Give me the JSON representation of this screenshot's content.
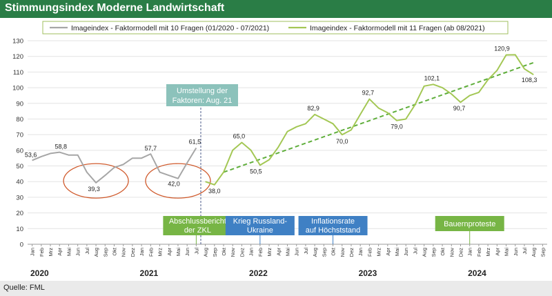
{
  "header": {
    "title": "Stimmungsindex Moderne Landwirtschaft"
  },
  "footer": {
    "source": "Quelle: FML"
  },
  "colors": {
    "header_bg": "#2a7d46",
    "series_grey": "#a6a6a6",
    "series_green": "#a3c754",
    "trend_green": "#5fae3b",
    "highlight_circle": "#d05a2c",
    "annotation_teal": "#8cc2bb",
    "event_green": "#77b545",
    "event_blue": "#3f80c4",
    "legend_border": "#9fbf5d"
  },
  "chart_data": {
    "type": "line",
    "title": "Stimmungsindex Moderne Landwirtschaft",
    "ylim": [
      0,
      130
    ],
    "yticks": [
      0,
      10,
      20,
      30,
      40,
      50,
      60,
      70,
      80,
      90,
      100,
      110,
      120,
      130
    ],
    "grid": true,
    "legend_position": "top",
    "month_labels": [
      "Jan",
      "Feb",
      "Mrz",
      "Apr",
      "Mai",
      "Jun",
      "Jul",
      "Aug",
      "Sep",
      "Okt",
      "Nov",
      "Dez",
      "Jan",
      "Feb",
      "Mrz",
      "Apr",
      "Mai",
      "Jun",
      "Jul",
      "Aug",
      "Sep",
      "Okt",
      "Nov",
      "Dez",
      "Jan",
      "Feb",
      "Mrz",
      "Apr",
      "Mai",
      "Jun",
      "Jul",
      "Aug",
      "Sep",
      "Okt",
      "Nov",
      "Dez",
      "Jan",
      "Feb",
      "Mrz",
      "Apr",
      "Mai",
      "Jun",
      "Jul",
      "Aug",
      "Sep",
      "Okt",
      "Nov",
      "Dez",
      "Jan",
      "Feb",
      "Mrz",
      "Apr",
      "Mai",
      "Jun",
      "Jul",
      "Aug",
      "Sep"
    ],
    "years": [
      {
        "label": "2020",
        "month": "2020-01"
      },
      {
        "label": "2021",
        "month": "2021-01"
      },
      {
        "label": "2022",
        "month": "2022-01"
      },
      {
        "label": "2023",
        "month": "2023-01"
      },
      {
        "label": "2024",
        "month": "2024-01"
      }
    ],
    "series": [
      {
        "name": "Imageindex - Faktormodell mit 10 Fragen (01/2020 - 07/2021)",
        "x": [
          "2020-01",
          "2020-02",
          "2020-03",
          "2020-04",
          "2020-05",
          "2020-06",
          "2020-07",
          "2020-08",
          "2020-09",
          "2020-10",
          "2020-11",
          "2020-12",
          "2021-01",
          "2021-02",
          "2021-03",
          "2021-04",
          "2021-05",
          "2021-06",
          "2021-07"
        ],
        "values": [
          53.6,
          56,
          58,
          58.8,
          57,
          57,
          46,
          39.3,
          44,
          49,
          51,
          55,
          55,
          57.7,
          46,
          44,
          42.0,
          52,
          61.5
        ]
      },
      {
        "name": "Imageindex - Faktormodell mit 11 Fragen (ab 08/2021)",
        "x": [
          "2021-08",
          "2021-09",
          "2021-10",
          "2021-11",
          "2021-12",
          "2022-01",
          "2022-02",
          "2022-03",
          "2022-04",
          "2022-05",
          "2022-06",
          "2022-07",
          "2022-08",
          "2022-09",
          "2022-10",
          "2022-11",
          "2022-12",
          "2023-01",
          "2023-02",
          "2023-03",
          "2023-04",
          "2023-05",
          "2023-06",
          "2023-07",
          "2023-08",
          "2023-09",
          "2023-10",
          "2023-11",
          "2023-12",
          "2024-01",
          "2024-02",
          "2024-03",
          "2024-04",
          "2024-05",
          "2024-06",
          "2024-07",
          "2024-08"
        ],
        "values": [
          40,
          38.0,
          46,
          60,
          65.0,
          60,
          50.5,
          54,
          62,
          72,
          75,
          77,
          82.9,
          80,
          77,
          70.0,
          73,
          83,
          92.7,
          87,
          84,
          79.0,
          80,
          89,
          101,
          102.1,
          100,
          96,
          90.7,
          95,
          97,
          105,
          111,
          120.9,
          121,
          112,
          108.3
        ]
      }
    ],
    "trendline": {
      "start": {
        "x": "2021-10",
        "y": 46
      },
      "end": {
        "x": "2024-08",
        "y": 116
      }
    },
    "data_labels": [
      {
        "x": "2020-01",
        "y": 53.6,
        "text": "53,6"
      },
      {
        "x": "2020-04",
        "y": 58.8,
        "text": "58,8"
      },
      {
        "x": "2020-08",
        "y": 39.3,
        "text": "39,3"
      },
      {
        "x": "2021-02",
        "y": 57.7,
        "text": "57,7"
      },
      {
        "x": "2021-05",
        "y": 42.0,
        "text": "42,0"
      },
      {
        "x": "2021-07",
        "y": 61.5,
        "text": "61,5"
      },
      {
        "x": "2021-09",
        "y": 38.0,
        "text": "38,0"
      },
      {
        "x": "2021-12",
        "y": 65.0,
        "text": "65,0"
      },
      {
        "x": "2022-02",
        "y": 50.5,
        "text": "50,5"
      },
      {
        "x": "2022-08",
        "y": 82.9,
        "text": "82,9"
      },
      {
        "x": "2022-11",
        "y": 70.0,
        "text": "70,0"
      },
      {
        "x": "2023-02",
        "y": 92.7,
        "text": "92,7"
      },
      {
        "x": "2023-05",
        "y": 79.0,
        "text": "79,0"
      },
      {
        "x": "2023-09",
        "y": 102.1,
        "text": "102,1"
      },
      {
        "x": "2023-12",
        "y": 90.7,
        "text": "90,7"
      },
      {
        "x": "2024-05",
        "y": 120.9,
        "text": "120,9"
      },
      {
        "x": "2024-08",
        "y": 108.3,
        "text": "108,3"
      }
    ],
    "annotations": [
      {
        "id": "umstellung",
        "lines": [
          "Umstellung der",
          "Faktoren: Aug. 21"
        ],
        "month": "2021-08"
      }
    ],
    "events": [
      {
        "id": "zkl",
        "lines": [
          "Abschlussbericht",
          "der ZKL"
        ],
        "month": "2021-07",
        "color": "green"
      },
      {
        "id": "krieg",
        "lines": [
          "Krieg Russland-",
          "Ukraine"
        ],
        "month": "2022-02",
        "color": "blue"
      },
      {
        "id": "inflation",
        "lines": [
          "Inflationsrate",
          "auf Höchststand"
        ],
        "month": "2022-10",
        "color": "blue"
      },
      {
        "id": "bauern",
        "lines": [
          "Bauernproteste"
        ],
        "month": "2024-01",
        "color": "green"
      }
    ],
    "highlight_circles": [
      {
        "id": "dip-2020",
        "month": "2020-08",
        "y": 40.5
      },
      {
        "id": "dip-2021",
        "month": "2021-05",
        "y": 40.5
      }
    ]
  }
}
